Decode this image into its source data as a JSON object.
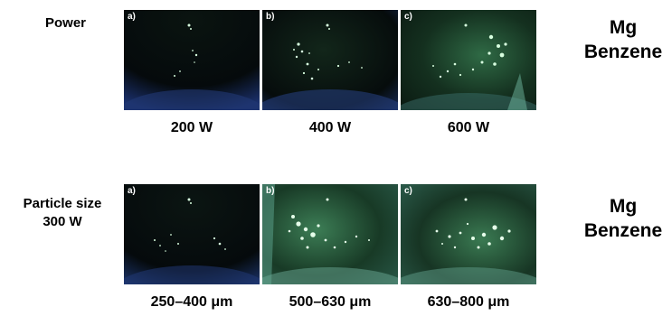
{
  "figure": {
    "rows": [
      {
        "row_label_lines": [
          "Power"
        ],
        "side_title_lines": [
          "Mg",
          "Benzene"
        ],
        "panels": [
          {
            "letter": "a)",
            "caption": "200 W",
            "intensity": "low"
          },
          {
            "letter": "b)",
            "caption": "400 W",
            "intensity": "medium"
          },
          {
            "letter": "c)",
            "caption": "600 W",
            "intensity": "high"
          }
        ]
      },
      {
        "row_label_lines": [
          "Particle size",
          "300 W"
        ],
        "side_title_lines": [
          "Mg",
          "Benzene"
        ],
        "panels": [
          {
            "letter": "a)",
            "caption": "250–400 μm",
            "intensity": "low"
          },
          {
            "letter": "b)",
            "caption": "500–630 μm",
            "intensity": "high"
          },
          {
            "letter": "c)",
            "caption": "630–800 μm",
            "intensity": "high"
          }
        ]
      }
    ],
    "colors": {
      "background_dark": "#05080a",
      "glow_green": "#2f6a45",
      "spark": "#d8ffe0",
      "rim_blue": "#223a7a"
    }
  }
}
